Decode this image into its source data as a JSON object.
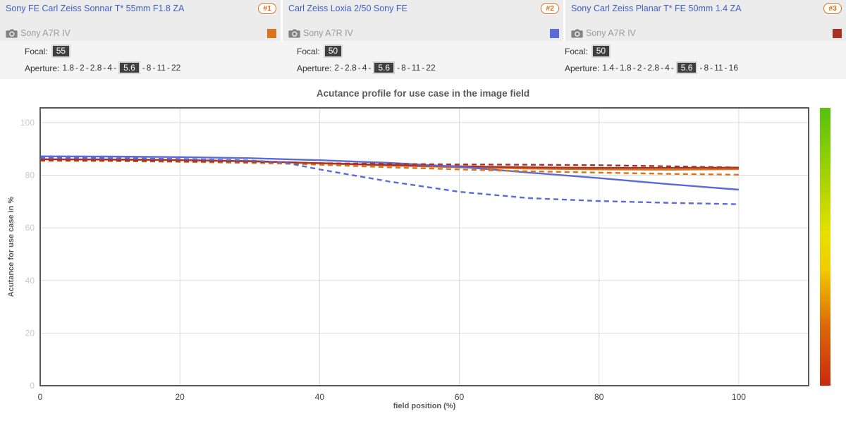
{
  "header": {
    "lenses": [
      {
        "name": "Sony FE Carl Zeiss Sonnar T* 55mm F1.8 ZA",
        "rank": "#1",
        "camera": "Sony A7R IV",
        "swatch": "#D9731C",
        "focal_label": "Focal:",
        "focal": "55",
        "aperture_label": "Aperture:",
        "apertures": [
          "1.8",
          "2",
          "2.8",
          "4",
          "5.6",
          "8",
          "11",
          "22"
        ],
        "selected_aperture": "5.6",
        "separator": " - "
      },
      {
        "name": "Carl Zeiss Loxia 2/50 Sony FE",
        "rank": "#2",
        "camera": "Sony A7R IV",
        "swatch": "#5A6AD8",
        "focal_label": "Focal:",
        "focal": "50",
        "aperture_label": "Aperture:",
        "apertures": [
          "2",
          "2.8",
          "4",
          "5.6",
          "8",
          "11",
          "22"
        ],
        "selected_aperture": "5.6",
        "separator": " - "
      },
      {
        "name": "Sony Carl Zeiss Planar T* FE 50mm 1.4 ZA",
        "rank": "#3",
        "camera": "Sony A7R IV",
        "swatch": "#A93226",
        "focal_label": "Focal:",
        "focal": "50",
        "aperture_label": "Aperture:",
        "apertures": [
          "1.4",
          "1.8",
          "2",
          "2.8",
          "4",
          "5.6",
          "8",
          "11",
          "16"
        ],
        "selected_aperture": "5.6",
        "separator": " - "
      }
    ]
  },
  "chart_data": {
    "type": "line",
    "title": "Acutance profile for use case in the image field",
    "xlabel": "field position (%)",
    "ylabel": "Acutance for use case in %",
    "xlim": [
      0,
      110
    ],
    "ylim": [
      0,
      105.6
    ],
    "xticks": [
      0,
      20,
      40,
      60,
      80,
      100
    ],
    "yticks": [
      0,
      20,
      40,
      60,
      80,
      100
    ],
    "grid": true,
    "legend_position": "none",
    "x": [
      0,
      10,
      20,
      30,
      35,
      40,
      50,
      60,
      70,
      80,
      90,
      100
    ],
    "series": [
      {
        "name": "Sony FE Carl Zeiss Sonnar T* 55mm F1.8 ZA (solid)",
        "color": "#D9731C",
        "style": "solid",
        "values": [
          86.0,
          85.9,
          85.7,
          85.2,
          84.9,
          84.5,
          83.7,
          83.0,
          82.5,
          82.2,
          82.1,
          82.3
        ]
      },
      {
        "name": "Sony Carl Zeiss Planar T* FE 50mm 1.4 ZA (solid)",
        "color": "#A93226",
        "style": "solid",
        "values": [
          86.1,
          86.0,
          85.8,
          85.4,
          85.0,
          84.6,
          83.9,
          83.4,
          83.0,
          82.8,
          82.8,
          82.9
        ]
      },
      {
        "name": "Carl Zeiss Loxia 2/50 Sony FE (solid)",
        "color": "#5A6AD8",
        "style": "solid",
        "values": [
          87.2,
          87.1,
          86.9,
          86.5,
          86.1,
          85.7,
          84.7,
          83.2,
          81.0,
          78.9,
          76.6,
          74.5
        ]
      },
      {
        "name": "Sony FE Carl Zeiss Sonnar T* 55mm F1.8 ZA (dashed)",
        "color": "#D9731C",
        "style": "dashed",
        "values": [
          85.5,
          85.4,
          85.1,
          84.7,
          84.4,
          84.0,
          83.0,
          82.2,
          81.5,
          81.0,
          80.5,
          80.2
        ]
      },
      {
        "name": "Sony Carl Zeiss Planar T* FE 50mm 1.4 ZA (dashed)",
        "color": "#A93226",
        "style": "dashed",
        "values": [
          85.7,
          85.6,
          85.4,
          85.1,
          84.9,
          84.6,
          84.3,
          84.1,
          84.0,
          83.8,
          83.4,
          82.9
        ]
      },
      {
        "name": "Carl Zeiss Loxia 2/50 Sony FE (dashed)",
        "color": "#5A6AD8",
        "style": "dashed",
        "values": [
          86.7,
          86.5,
          86.2,
          85.6,
          84.8,
          82.2,
          77.6,
          73.7,
          71.3,
          70.2,
          69.5,
          69.0
        ]
      }
    ],
    "colorbar": {
      "stops": [
        {
          "offset": "0%",
          "color": "#55C20C"
        },
        {
          "offset": "45%",
          "color": "#E6E000"
        },
        {
          "offset": "58%",
          "color": "#F2CC00"
        },
        {
          "offset": "78%",
          "color": "#DC6A08"
        },
        {
          "offset": "100%",
          "color": "#C9290F"
        }
      ]
    }
  }
}
